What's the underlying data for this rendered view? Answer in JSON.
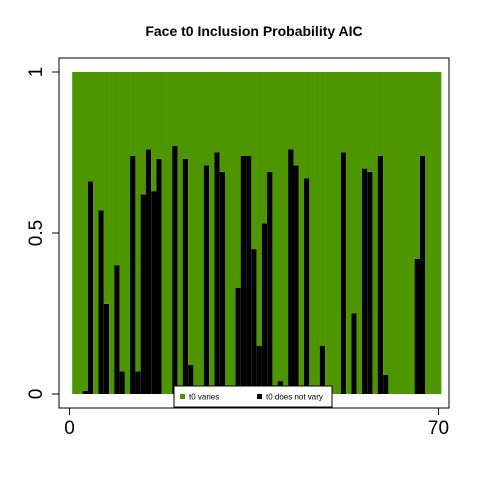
{
  "chart_data": {
    "type": "bar",
    "stacked": true,
    "title": "Face t0 Inclusion Probability AIC",
    "xlabel": "",
    "ylabel": "",
    "xlim": [
      -2,
      72
    ],
    "ylim": [
      0,
      1
    ],
    "x_ticks": [
      {
        "value": 0,
        "label": "0"
      },
      {
        "value": 70,
        "label": "70"
      }
    ],
    "y_ticks": [
      {
        "value": 0,
        "label": "0"
      },
      {
        "value": 0.5,
        "label": "0.5"
      },
      {
        "value": 1,
        "label": "1"
      }
    ],
    "colors": {
      "t0_varies": "#4e9600",
      "t0_does_not_vary": "#000000"
    },
    "legend": {
      "position": "bottom-center",
      "entries": [
        "t0 varies",
        "t0 does not vary"
      ]
    },
    "x": [
      1,
      2,
      3,
      4,
      5,
      6,
      7,
      8,
      9,
      10,
      11,
      12,
      13,
      14,
      15,
      16,
      17,
      18,
      19,
      20,
      21,
      22,
      23,
      24,
      25,
      26,
      27,
      28,
      29,
      30,
      31,
      32,
      33,
      34,
      35,
      36,
      37,
      38,
      39,
      40,
      41,
      42,
      43,
      44,
      45,
      46,
      47,
      48,
      49,
      50,
      51,
      52,
      53,
      54,
      55,
      56,
      57,
      58,
      59,
      60,
      61,
      62,
      63,
      64,
      65,
      66,
      67,
      68,
      69,
      70
    ],
    "series": [
      {
        "name": "t0 does not vary",
        "values": [
          0,
          0,
          0.01,
          0.66,
          0,
          0.57,
          0.28,
          0,
          0.4,
          0.07,
          0,
          0.74,
          0.07,
          0.62,
          0.76,
          0.63,
          0.73,
          0,
          0,
          0.77,
          0,
          0.73,
          0.09,
          0,
          0,
          0.71,
          0,
          0.75,
          0.69,
          0,
          0,
          0.33,
          0.74,
          0.74,
          0.45,
          0.15,
          0.53,
          0.69,
          0,
          0.04,
          0,
          0.76,
          0.71,
          0,
          0.67,
          0,
          0,
          0.15,
          0,
          0,
          0,
          0.75,
          0,
          0.25,
          0,
          0.7,
          0.69,
          0,
          0.74,
          0.06,
          0,
          0,
          0,
          0,
          0,
          0.42,
          0.74,
          0,
          0,
          0
        ]
      },
      {
        "name": "t0 varies",
        "values": [
          1,
          1,
          0.99,
          0.34,
          1,
          0.43,
          0.72,
          1,
          0.6,
          0.93,
          1,
          0.26,
          0.93,
          0.38,
          0.24,
          0.37,
          0.27,
          1,
          1,
          0.23,
          1,
          0.27,
          0.91,
          1,
          1,
          0.29,
          1,
          0.25,
          0.31,
          1,
          1,
          0.67,
          0.26,
          0.26,
          0.55,
          0.85,
          0.47,
          0.31,
          1,
          0.96,
          1,
          0.24,
          0.29,
          1,
          0.33,
          1,
          1,
          0.85,
          1,
          1,
          1,
          0.25,
          1,
          0.75,
          1,
          0.3,
          0.31,
          1,
          0.26,
          0.94,
          1,
          1,
          1,
          1,
          1,
          0.58,
          0.26,
          1,
          1,
          1
        ]
      }
    ]
  }
}
